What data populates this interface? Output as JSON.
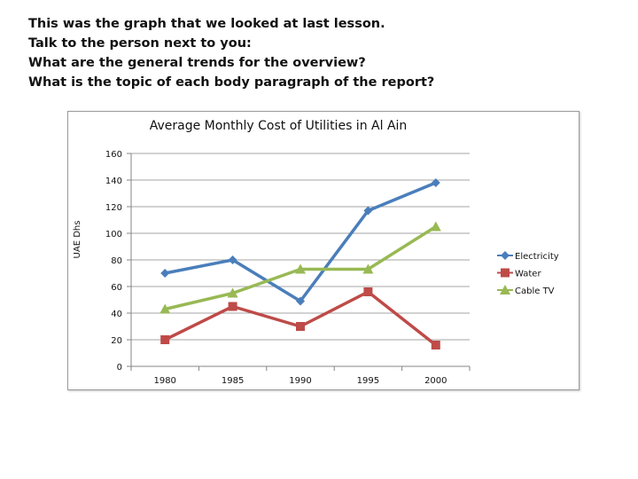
{
  "prompt": {
    "lines": [
      "This was the graph that we looked at last lesson.",
      "Talk to the person next to you:",
      "What are the general trends for the overview?",
      "What is the topic of each body paragraph of the report?"
    ]
  },
  "chart_data": {
    "type": "line",
    "title": "Average Monthly Cost of Utilities in Al Ain",
    "xlabel": "",
    "ylabel": "UAE Dhs",
    "categories": [
      "1980",
      "1985",
      "1990",
      "1995",
      "2000"
    ],
    "ylim": [
      0,
      160
    ],
    "yticks": [
      "0",
      "20",
      "40",
      "60",
      "80",
      "100",
      "120",
      "140",
      "160"
    ],
    "grid": true,
    "legend": "right",
    "series": [
      {
        "name": "Electricity",
        "values": [
          70,
          80,
          49,
          117,
          138
        ],
        "color": "#4a7ebb",
        "marker": "diamond"
      },
      {
        "name": "Water",
        "values": [
          20,
          45,
          30,
          56,
          16
        ],
        "color": "#be4b48",
        "marker": "square"
      },
      {
        "name": "Cable TV",
        "values": [
          43,
          55,
          73,
          73,
          105
        ],
        "color": "#98b954",
        "marker": "triangle"
      }
    ]
  }
}
